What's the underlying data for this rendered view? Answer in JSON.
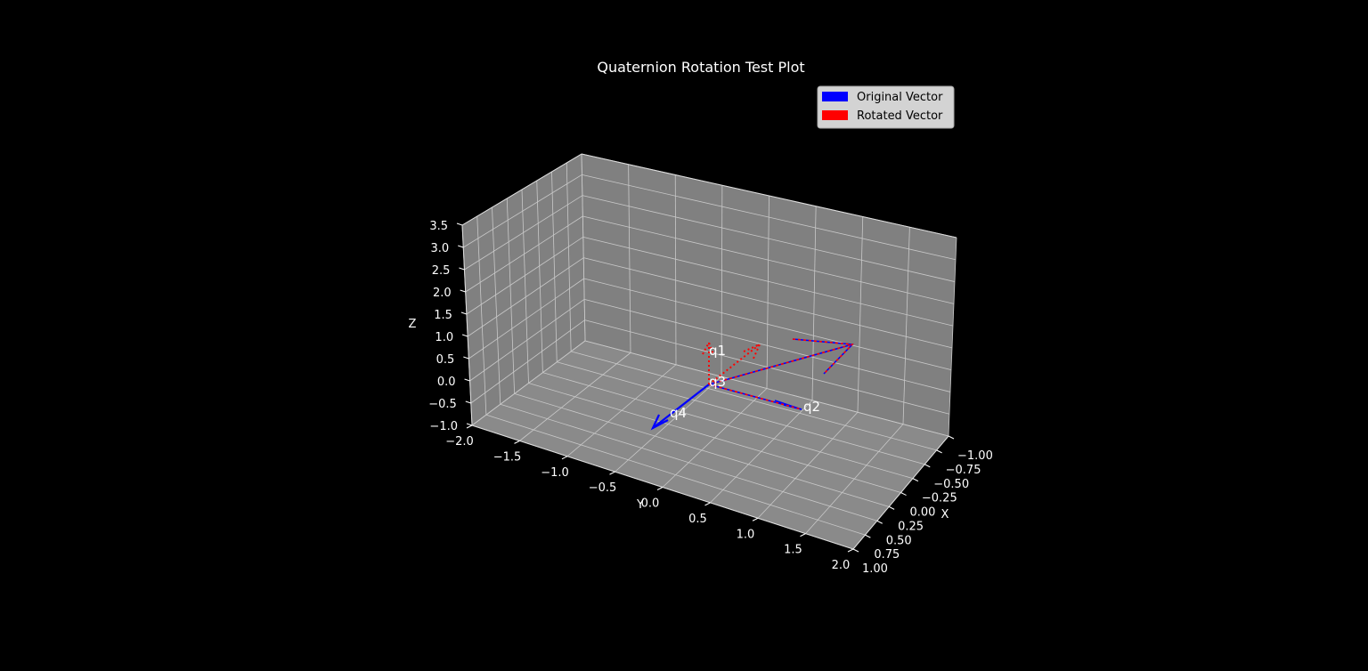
{
  "chart_data": {
    "type": "3d-quiver",
    "title": "Quaternion Rotation Test Plot",
    "xlabel": "X",
    "ylabel": "Y",
    "zlabel": "Z",
    "xlim": [
      -1.0,
      1.0
    ],
    "ylim": [
      -2.0,
      2.0
    ],
    "zlim": [
      -1.0,
      3.5
    ],
    "x_ticks": [
      "−1.00",
      "−0.75",
      "−0.50",
      "−0.25",
      "0.00",
      "0.25",
      "0.50",
      "0.75",
      "1.00"
    ],
    "y_ticks": [
      "−2.0",
      "−1.5",
      "−1.0",
      "−0.5",
      "0.0",
      "0.5",
      "1.0",
      "1.5",
      "2.0"
    ],
    "z_ticks": [
      "−1.0",
      "−0.5",
      "0.0",
      "0.5",
      "1.0",
      "1.5",
      "2.0",
      "2.5",
      "3.0",
      "3.5"
    ],
    "grid": true,
    "legend_position": "top-right",
    "legend": [
      {
        "label": "Original Vector",
        "color": "#0000ff"
      },
      {
        "label": "Rotated Vector",
        "color": "#ff0000"
      }
    ],
    "pane_color": "#808080",
    "background": "#000000",
    "annotations": [
      "q1",
      "q2",
      "q3",
      "q4"
    ]
  }
}
